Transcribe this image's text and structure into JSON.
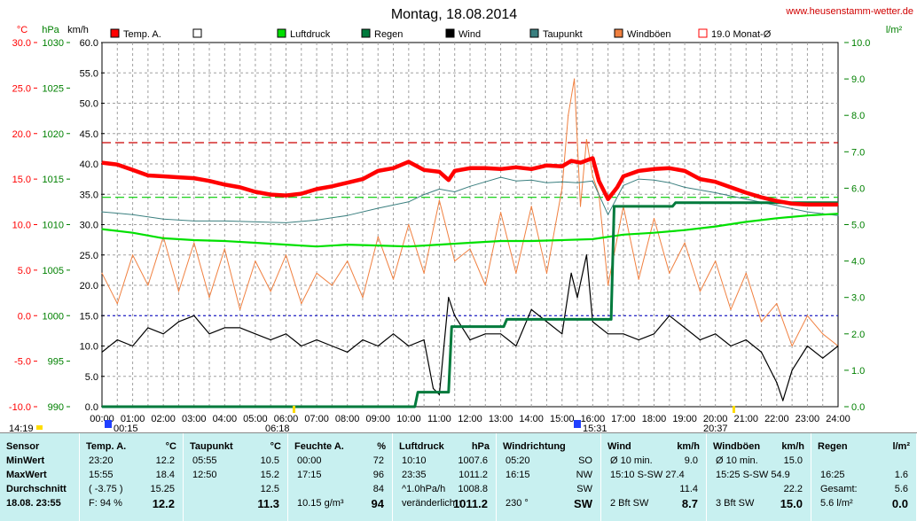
{
  "header": {
    "title": "Montag, 18.08.2014",
    "website": "www.heusenstamm-wetter.de",
    "unit_temp": "°C",
    "unit_hpa": "hPa",
    "unit_kmh": "km/h",
    "unit_rain": "l/m²"
  },
  "legend": [
    {
      "label": "Temp. A.",
      "color": "#ff0000",
      "style": "filled"
    },
    {
      "label": "",
      "color": "#000000",
      "style": "hollow"
    },
    {
      "label": "Luftdruck",
      "color": "#00e000",
      "style": "filled"
    },
    {
      "label": "Regen",
      "color": "#007a3c",
      "style": "filled"
    },
    {
      "label": "Wind",
      "color": "#000000",
      "style": "filled"
    },
    {
      "label": "Taupunkt",
      "color": "#3a7f7f",
      "style": "filled"
    },
    {
      "label": "Windböen",
      "color": "#f08040",
      "style": "filled"
    },
    {
      "label": "19.0 Monat-Ø",
      "color": "#ff0000",
      "style": "hollow"
    }
  ],
  "time_markers": {
    "bottom_left": "14:19",
    "m1": "00:15",
    "m2": "06:18",
    "m3": "15:31",
    "m4": "20:37"
  },
  "chart_data": {
    "type": "line",
    "x_label_ticks": [
      "00:00",
      "01:00",
      "02:00",
      "03:00",
      "04:00",
      "05:00",
      "06:00",
      "07:00",
      "08:00",
      "09:00",
      "10:00",
      "11:00",
      "12:00",
      "13:00",
      "14:00",
      "15:00",
      "16:00",
      "17:00",
      "18:00",
      "19:00",
      "20:00",
      "21:00",
      "22:00",
      "23:00",
      "24:00"
    ],
    "xlim": [
      0,
      24
    ],
    "axes": {
      "temp": {
        "ticks": [
          "30.0",
          "25.0",
          "20.0",
          "15.0",
          "10.0",
          "5.0",
          "0.0",
          "-5.0",
          "-10.0"
        ],
        "range": [
          -10,
          30
        ],
        "color": "#ff0000"
      },
      "hpa": {
        "ticks": [
          "1030",
          "1025",
          "1020",
          "1015",
          "1010",
          "1005",
          "1000",
          "995",
          "990"
        ],
        "range": [
          990,
          1030
        ],
        "color": "#008000"
      },
      "kmh": {
        "ticks": [
          "60.0",
          "55.0",
          "50.0",
          "45.0",
          "40.0",
          "35.0",
          "30.0",
          "25.0",
          "20.0",
          "15.0",
          "10.0",
          "5.0",
          "0.0"
        ],
        "range": [
          0,
          60
        ],
        "color": "#000000"
      },
      "rain": {
        "ticks": [
          "10.0",
          "9.0",
          "8.0",
          "7.0",
          "6.0",
          "5.0",
          "4.0",
          "3.0",
          "2.0",
          "1.0",
          "0.0"
        ],
        "range": [
          0,
          10
        ],
        "color": "#008000"
      }
    },
    "reference_lines": {
      "month_avg_temp": 19.0,
      "zero_temp": 0.0,
      "pressure_1013": 1013
    },
    "series": [
      {
        "name": "Temp. A.",
        "axis": "temp",
        "color": "#ff0000",
        "x": [
          0,
          0.5,
          1,
          1.5,
          2,
          2.5,
          3,
          3.5,
          4,
          4.5,
          5,
          5.5,
          6,
          6.5,
          7,
          7.5,
          8,
          8.5,
          9,
          9.5,
          10,
          10.5,
          11,
          11.3,
          11.5,
          12,
          12.5,
          13,
          13.5,
          14,
          14.5,
          15,
          15.3,
          15.6,
          16,
          16.2,
          16.5,
          16.8,
          17,
          17.5,
          18,
          18.5,
          19,
          19.5,
          20,
          20.5,
          21,
          21.5,
          22,
          22.5,
          23,
          23.5,
          24
        ],
        "values": [
          16.8,
          16.6,
          16.0,
          15.4,
          15.3,
          15.2,
          15.1,
          14.8,
          14.4,
          14.1,
          13.6,
          13.3,
          13.2,
          13.4,
          13.9,
          14.2,
          14.6,
          15.0,
          15.9,
          16.2,
          16.9,
          16.0,
          15.8,
          14.9,
          15.9,
          16.2,
          16.2,
          16.1,
          16.3,
          16.1,
          16.5,
          16.4,
          17.0,
          16.8,
          17.3,
          14.8,
          12.8,
          14.1,
          15.3,
          15.9,
          16.1,
          16.2,
          15.9,
          15.0,
          14.7,
          14.1,
          13.5,
          13.0,
          12.6,
          12.3,
          12.2,
          12.2,
          12.2
        ]
      },
      {
        "name": "Taupunkt",
        "axis": "temp",
        "color": "#3a7f7f",
        "x": [
          0,
          1,
          2,
          3,
          4,
          5,
          6,
          7,
          8,
          9,
          10,
          10.5,
          11,
          11.5,
          12,
          12.5,
          13,
          13.5,
          14,
          14.5,
          15,
          15.5,
          16,
          16.5,
          17,
          17.5,
          18,
          18.5,
          19,
          20,
          21,
          22,
          23,
          24
        ],
        "values": [
          11.4,
          11.1,
          10.6,
          10.4,
          10.4,
          10.3,
          10.2,
          10.5,
          11.0,
          11.8,
          12.5,
          13.3,
          13.9,
          13.6,
          14.2,
          14.7,
          15.2,
          14.8,
          14.9,
          14.6,
          14.7,
          14.6,
          14.8,
          11.1,
          14.3,
          15.0,
          14.9,
          14.6,
          14.1,
          13.5,
          12.8,
          12.1,
          11.4,
          11.0
        ]
      },
      {
        "name": "Luftdruck",
        "axis": "hpa",
        "color": "#00e000",
        "x": [
          0,
          1,
          2,
          3,
          4,
          5,
          6,
          7,
          8,
          9,
          10,
          11,
          12,
          13,
          14,
          15,
          16,
          17,
          18,
          19,
          20,
          21,
          22,
          23,
          24
        ],
        "values": [
          1009.5,
          1009.1,
          1008.5,
          1008.3,
          1008.2,
          1008.0,
          1007.8,
          1007.6,
          1007.8,
          1007.7,
          1007.6,
          1007.8,
          1008.0,
          1008.2,
          1008.2,
          1008.3,
          1008.4,
          1008.9,
          1009.1,
          1009.4,
          1009.8,
          1010.3,
          1010.7,
          1011.0,
          1011.2
        ]
      },
      {
        "name": "Regen",
        "axis": "rain",
        "color": "#007a3c",
        "x": [
          0,
          10.2,
          10.3,
          11.3,
          11.4,
          13.1,
          13.2,
          15.2,
          15.3,
          16.6,
          16.7,
          17.0,
          17.1,
          18.6,
          18.7,
          24
        ],
        "values": [
          0,
          0,
          0.4,
          0.4,
          2.2,
          2.2,
          2.4,
          2.4,
          2.4,
          2.4,
          5.5,
          5.5,
          5.5,
          5.5,
          5.6,
          5.6
        ]
      },
      {
        "name": "Wind",
        "axis": "kmh",
        "color": "#000000",
        "x": [
          0,
          0.5,
          1,
          1.5,
          2,
          2.5,
          3,
          3.5,
          4,
          4.5,
          5,
          5.5,
          6,
          6.5,
          7,
          7.5,
          8,
          8.5,
          9,
          9.5,
          10,
          10.5,
          10.8,
          11,
          11.3,
          11.5,
          12,
          12.5,
          13,
          13.5,
          14,
          14.5,
          15,
          15.3,
          15.5,
          15.8,
          16,
          16.5,
          17,
          17.5,
          18,
          18.5,
          19,
          19.5,
          20,
          20.5,
          21,
          21.5,
          22,
          22.2,
          22.5,
          23,
          23.5,
          24
        ],
        "values": [
          9,
          11,
          10,
          13,
          12,
          14,
          15,
          12,
          13,
          13,
          12,
          11,
          12,
          10,
          11,
          10,
          9,
          11,
          10,
          12,
          10,
          11,
          3,
          2,
          18,
          15,
          11,
          12,
          12,
          10,
          16,
          14,
          12,
          22,
          18,
          25,
          14,
          12,
          12,
          11,
          12,
          15,
          13,
          11,
          12,
          10,
          11,
          9,
          4,
          1,
          6,
          10,
          8,
          10
        ]
      },
      {
        "name": "Windböen",
        "axis": "kmh",
        "color": "#f08040",
        "x": [
          0,
          0.5,
          1,
          1.5,
          2,
          2.5,
          3,
          3.5,
          4,
          4.5,
          5,
          5.5,
          6,
          6.5,
          7,
          7.5,
          8,
          8.5,
          9,
          9.5,
          10,
          10.5,
          11,
          11.5,
          12,
          12.5,
          13,
          13.5,
          14,
          14.5,
          15,
          15.2,
          15.4,
          15.6,
          15.8,
          16,
          16.2,
          16.5,
          17,
          17.5,
          18,
          18.5,
          19,
          19.5,
          20,
          20.5,
          21,
          21.5,
          22,
          22.5,
          23,
          23.5,
          24
        ],
        "values": [
          22,
          17,
          25,
          20,
          28,
          19,
          27,
          18,
          26,
          16,
          24,
          19,
          25,
          17,
          22,
          20,
          24,
          18,
          28,
          21,
          30,
          22,
          34,
          24,
          26,
          20,
          32,
          22,
          33,
          22,
          36,
          48,
          54,
          33,
          44,
          38,
          35,
          20,
          33,
          21,
          31,
          22,
          27,
          19,
          24,
          16,
          22,
          14,
          17,
          10,
          15,
          12,
          10
        ]
      }
    ]
  },
  "panel": {
    "columns": [
      {
        "name": "sensor",
        "header": "Sensor",
        "unit": "",
        "rows": [
          [
            "MinWert",
            ""
          ],
          [
            "MaxWert",
            ""
          ],
          [
            "Durchschnitt",
            ""
          ],
          [
            "18.08. 23:55",
            ""
          ]
        ]
      },
      {
        "name": "temp",
        "header": "Temp. A.",
        "unit": "°C",
        "rows": [
          [
            "23:20",
            "12.2"
          ],
          [
            "15:55",
            "18.4"
          ],
          [
            "( -3.75 )",
            "15.25"
          ],
          [
            "F: 94 %",
            "12.2"
          ]
        ]
      },
      {
        "name": "dew",
        "header": "Taupunkt",
        "unit": "°C",
        "rows": [
          [
            "05:55",
            "10.5"
          ],
          [
            "12:50",
            "15.2"
          ],
          [
            "",
            "12.5"
          ],
          [
            "",
            "11.3"
          ]
        ]
      },
      {
        "name": "hum",
        "header": "Feuchte A.",
        "unit": "%",
        "rows": [
          [
            "00:00",
            "72"
          ],
          [
            "17:15",
            "96"
          ],
          [
            "",
            "84"
          ],
          [
            "10.15 g/m³",
            "94"
          ]
        ]
      },
      {
        "name": "press",
        "header": "Luftdruck",
        "unit": "hPa",
        "rows": [
          [
            "10:10",
            "1007.6"
          ],
          [
            "23:35",
            "1011.2"
          ],
          [
            "^1.0hPa/h",
            "1008.8"
          ],
          [
            "veränderlich ↑",
            "1011.2"
          ]
        ]
      },
      {
        "name": "dir",
        "header": "Windrichtung",
        "unit": "",
        "rows": [
          [
            "05:20",
            "SO"
          ],
          [
            "16:15",
            "NW"
          ],
          [
            "",
            "SW"
          ],
          [
            "230 °",
            "SW"
          ]
        ]
      },
      {
        "name": "wind",
        "header": "Wind",
        "unit": "km/h",
        "rows": [
          [
            "Ø 10 min.",
            "9.0"
          ],
          [
            "15:10   S-SW 27.4",
            ""
          ],
          [
            "",
            "11.4"
          ],
          [
            "2 Bft SW",
            "8.7"
          ]
        ]
      },
      {
        "name": "gust",
        "header": "Windböen",
        "unit": "km/h",
        "rows": [
          [
            "Ø 10 min.",
            "15.0"
          ],
          [
            "15:25   S-SW 54.9",
            ""
          ],
          [
            "",
            "22.2"
          ],
          [
            "3 Bft SW",
            "15.0"
          ]
        ]
      },
      {
        "name": "rain",
        "header": "Regen",
        "unit": "l/m²",
        "rows": [
          [
            "",
            ""
          ],
          [
            "16:25",
            "1.6"
          ],
          [
            "Gesamt:",
            "5.6"
          ],
          [
            "5.6 l/m²",
            "0.0"
          ]
        ]
      }
    ]
  }
}
